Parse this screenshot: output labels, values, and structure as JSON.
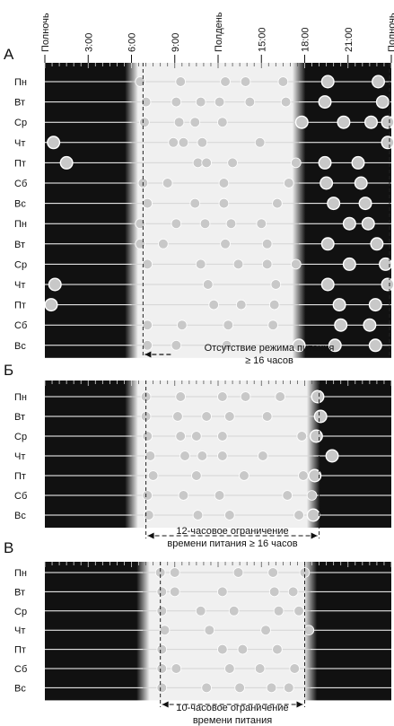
{
  "time_axis": {
    "labels": [
      "Полночь",
      "3:00",
      "6:00",
      "9:00",
      "Полдень",
      "15:00",
      "18:00",
      "21:00",
      "Полночь"
    ],
    "hours": [
      0,
      3,
      6,
      9,
      12,
      15,
      18,
      21,
      24
    ]
  },
  "colors": {
    "night": "#111111",
    "day": "#f0f0f0",
    "dot_fill": "#c8c8c8",
    "dot_stroke": "#ffffff",
    "line_dark": "#ffffff",
    "line_light": "#d4d4d4",
    "dashed": "#222222"
  },
  "panels": [
    {
      "id": "A",
      "label": "А",
      "day_start": 6.0,
      "day_end": 17.6,
      "window_start": 6.8,
      "window_end": 24,
      "caption": [
        "Отсутствие режима питания",
        "≥ 16 часов"
      ],
      "days": [
        "Пн",
        "Вт",
        "Ср",
        "Чт",
        "Пт",
        "Сб",
        "Вс",
        "Пн",
        "Вт",
        "Ср",
        "Чт",
        "Пт",
        "Сб",
        "Вс"
      ],
      "meals": [
        [
          6.6,
          9.4,
          12.5,
          13.9,
          16.5,
          19.6,
          23.1
        ],
        [
          7.0,
          9.1,
          10.8,
          12.1,
          14.2,
          16.7,
          19.4,
          23.4
        ],
        [
          6.9,
          9.3,
          10.4,
          12.3,
          17.8,
          20.7,
          22.6,
          24.0
        ],
        [
          0.6,
          8.9,
          9.6,
          10.9,
          14.9,
          23.9
        ],
        [
          1.5,
          10.6,
          11.2,
          13.0,
          17.4,
          19.4,
          21.7
        ],
        [
          6.8,
          8.5,
          12.4,
          16.9,
          19.5,
          21.9
        ],
        [
          7.1,
          10.4,
          12.4,
          16.1,
          20.0,
          22.2
        ],
        [
          6.6,
          9.1,
          11.1,
          12.9,
          15.0,
          21.1,
          22.4
        ],
        [
          6.6,
          8.2,
          12.5,
          15.4,
          19.6,
          23.0
        ],
        [
          7.1,
          10.8,
          13.4,
          15.4,
          17.4,
          21.1,
          23.6
        ],
        [
          0.7,
          11.3,
          16.0,
          19.6,
          23.9
        ],
        [
          0.4,
          11.7,
          13.6,
          15.9,
          20.4,
          22.9
        ],
        [
          7.1,
          9.5,
          12.7,
          15.8,
          20.5,
          22.5
        ],
        [
          7.1,
          9.1,
          12.6,
          17.6,
          20.1,
          22.9
        ]
      ]
    },
    {
      "id": "B",
      "label": "Б",
      "day_start": 6.0,
      "day_end": 18.6,
      "window_start": 7.0,
      "window_end": 19.0,
      "caption": [
        "12-часовое ограничение",
        "времени питания ≥ 16 часов"
      ],
      "days": [
        "Пн",
        "Вт",
        "Ср",
        "Чт",
        "Пт",
        "Сб",
        "Вс"
      ],
      "meals": [
        [
          7.0,
          9.4,
          12.3,
          13.9,
          16.3,
          18.9
        ],
        [
          7.0,
          9.2,
          11.2,
          12.8,
          15.4,
          19.1
        ],
        [
          7.1,
          9.4,
          10.5,
          12.3,
          17.8,
          18.8
        ],
        [
          7.3,
          9.7,
          10.9,
          12.3,
          15.1,
          19.9
        ],
        [
          7.5,
          10.5,
          13.8,
          17.9,
          18.7
        ],
        [
          7.1,
          9.6,
          12.1,
          16.8,
          18.5
        ],
        [
          7.2,
          10.6,
          12.8,
          17.6,
          18.6
        ]
      ]
    },
    {
      "id": "C",
      "label": "В",
      "day_start": 6.8,
      "day_end": 18.4,
      "window_start": 8.0,
      "window_end": 18.0,
      "caption": [
        "10-часовое ограничение",
        "времени питания"
      ],
      "days": [
        "Пн",
        "Вт",
        "Ср",
        "Чт",
        "Пт",
        "Сб",
        "Вс"
      ],
      "meals": [
        [
          8.0,
          9.0,
          13.4,
          15.8,
          18.0
        ],
        [
          8.1,
          9.0,
          12.3,
          15.9,
          17.2
        ],
        [
          8.1,
          10.8,
          13.1,
          16.2,
          17.6
        ],
        [
          8.3,
          11.4,
          15.3,
          18.3
        ],
        [
          8.1,
          12.3,
          13.7,
          16.1
        ],
        [
          8.1,
          9.1,
          12.8,
          14.9,
          17.3
        ],
        [
          8.1,
          11.2,
          13.5,
          15.7,
          16.9
        ]
      ]
    }
  ]
}
